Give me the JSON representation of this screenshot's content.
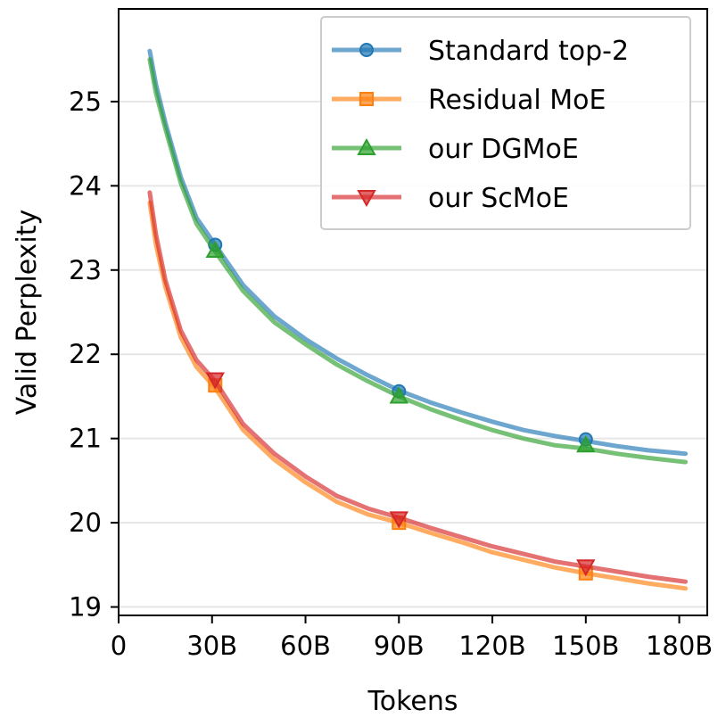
{
  "chart_data": {
    "type": "line",
    "xlabel": "Tokens",
    "ylabel": "Valid Perplexity",
    "xlim": [
      0,
      189
    ],
    "ylim": [
      18.9,
      26.1
    ],
    "x_ticks": [
      {
        "value": 0,
        "label": "0"
      },
      {
        "value": 30,
        "label": "30B"
      },
      {
        "value": 60,
        "label": "60B"
      },
      {
        "value": 90,
        "label": "90B"
      },
      {
        "value": 120,
        "label": "120B"
      },
      {
        "value": 150,
        "label": "150B"
      },
      {
        "value": 180,
        "label": "180B"
      }
    ],
    "y_ticks": [
      {
        "value": 19,
        "label": "19"
      },
      {
        "value": 20,
        "label": "20"
      },
      {
        "value": 21,
        "label": "21"
      },
      {
        "value": 22,
        "label": "22"
      },
      {
        "value": 23,
        "label": "23"
      },
      {
        "value": 24,
        "label": "24"
      },
      {
        "value": 25,
        "label": "25"
      }
    ],
    "grid": "horizontal",
    "legend_position": "top-right",
    "series": [
      {
        "name": "Standard top-2",
        "color": "#1f77b4",
        "marker": "circle",
        "marker_x": [
          31,
          90,
          150
        ],
        "marker_y": [
          23.3,
          21.56,
          20.99
        ],
        "x": [
          10,
          12,
          15,
          20,
          25,
          31,
          40,
          50,
          60,
          70,
          80,
          90,
          100,
          110,
          120,
          130,
          140,
          150,
          160,
          170,
          182
        ],
        "y": [
          25.6,
          25.2,
          24.75,
          24.1,
          23.62,
          23.3,
          22.82,
          22.45,
          22.18,
          21.95,
          21.75,
          21.57,
          21.43,
          21.31,
          21.2,
          21.1,
          21.03,
          20.97,
          20.91,
          20.86,
          20.82
        ]
      },
      {
        "name": "Residual MoE",
        "color": "#ff7f0e",
        "marker": "square",
        "marker_x": [
          31,
          90,
          150
        ],
        "marker_y": [
          21.63,
          20.0,
          19.4
        ],
        "x": [
          10,
          12,
          15,
          20,
          25,
          31,
          40,
          50,
          60,
          70,
          80,
          90,
          100,
          110,
          120,
          130,
          140,
          150,
          160,
          170,
          182
        ],
        "y": [
          23.8,
          23.3,
          22.8,
          22.2,
          21.85,
          21.6,
          21.1,
          20.75,
          20.48,
          20.25,
          20.1,
          20.0,
          19.88,
          19.77,
          19.65,
          19.56,
          19.47,
          19.4,
          19.34,
          19.28,
          19.22
        ]
      },
      {
        "name": "our DGMoE",
        "color": "#2ca02c",
        "marker": "triangle-up",
        "marker_x": [
          31,
          90,
          150
        ],
        "marker_y": [
          23.23,
          21.5,
          20.92
        ],
        "x": [
          10,
          12,
          15,
          20,
          25,
          31,
          40,
          50,
          60,
          70,
          80,
          90,
          100,
          110,
          120,
          130,
          140,
          150,
          160,
          170,
          182
        ],
        "y": [
          25.5,
          25.1,
          24.68,
          24.03,
          23.55,
          23.22,
          22.75,
          22.38,
          22.12,
          21.88,
          21.68,
          21.5,
          21.35,
          21.22,
          21.1,
          21.0,
          20.92,
          20.88,
          20.82,
          20.77,
          20.72
        ]
      },
      {
        "name": "our ScMoE",
        "color": "#d62728",
        "marker": "triangle-down",
        "marker_x": [
          31,
          90,
          150
        ],
        "marker_y": [
          21.7,
          20.05,
          19.48
        ],
        "x": [
          10,
          12,
          15,
          20,
          25,
          31,
          40,
          50,
          60,
          70,
          80,
          90,
          100,
          110,
          120,
          130,
          140,
          150,
          160,
          170,
          182
        ],
        "y": [
          23.92,
          23.42,
          22.88,
          22.28,
          21.93,
          21.68,
          21.17,
          20.82,
          20.55,
          20.32,
          20.17,
          20.06,
          19.94,
          19.83,
          19.72,
          19.63,
          19.54,
          19.48,
          19.42,
          19.36,
          19.3
        ]
      }
    ]
  }
}
